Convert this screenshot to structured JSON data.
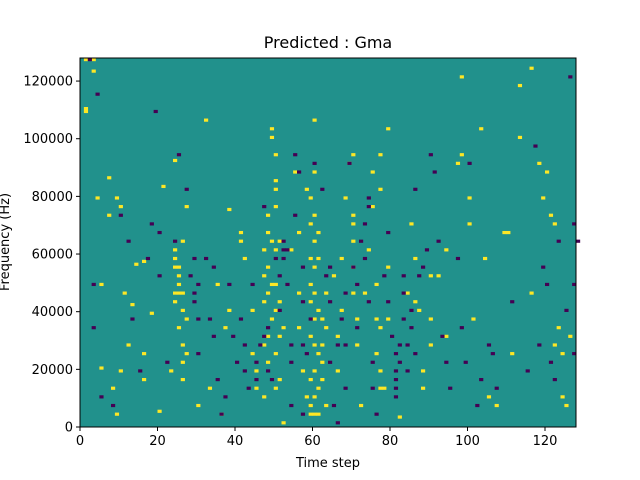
{
  "chart_data": {
    "type": "heatmap",
    "title": "Predicted : Gma",
    "xlabel": "Time step",
    "ylabel": "Frequency (Hz)",
    "xlim": [
      0,
      128
    ],
    "ylim": [
      0,
      128000
    ],
    "x_ticks": [
      0,
      20,
      40,
      60,
      80,
      100,
      120
    ],
    "y_ticks": [
      0,
      20000,
      40000,
      60000,
      80000,
      100000,
      120000
    ],
    "grid": false,
    "colors": {
      "background": "#21918c",
      "high": "#fde725",
      "low": "#440154"
    },
    "value_levels": {
      "background": 0,
      "high": 1,
      "low": -1
    },
    "n_time_steps": 128,
    "n_frequency_bins": 128,
    "cells_note_high": "high-valued cells [time_step, frequency_bin]",
    "high_cells": [
      [
        1,
        127
      ],
      [
        3,
        127
      ],
      [
        3,
        123
      ],
      [
        1,
        110
      ],
      [
        1,
        109
      ],
      [
        7,
        86
      ],
      [
        4,
        79
      ],
      [
        9,
        79
      ],
      [
        7,
        73
      ],
      [
        10,
        76
      ],
      [
        9,
        4
      ],
      [
        8,
        13
      ],
      [
        10,
        19
      ],
      [
        5,
        49
      ],
      [
        11,
        46
      ],
      [
        14,
        56
      ],
      [
        13,
        42
      ],
      [
        5,
        20
      ],
      [
        12,
        28
      ],
      [
        16,
        57
      ],
      [
        18,
        39
      ],
      [
        16,
        25
      ],
      [
        16,
        16
      ],
      [
        20,
        5
      ],
      [
        21,
        83
      ],
      [
        24,
        92
      ],
      [
        24,
        61
      ],
      [
        24,
        58
      ],
      [
        24,
        55
      ],
      [
        25,
        55
      ],
      [
        25,
        52
      ],
      [
        25,
        49
      ],
      [
        24,
        46
      ],
      [
        25,
        46
      ],
      [
        26,
        46
      ],
      [
        24,
        43
      ],
      [
        26,
        40
      ],
      [
        25,
        34
      ],
      [
        26,
        28
      ],
      [
        26,
        22
      ],
      [
        26,
        16
      ],
      [
        27,
        76
      ],
      [
        26,
        64
      ],
      [
        27,
        25
      ],
      [
        27,
        37
      ],
      [
        23,
        19
      ],
      [
        32,
        106
      ],
      [
        30,
        7
      ],
      [
        33,
        13
      ],
      [
        35,
        49
      ],
      [
        36,
        4
      ],
      [
        37,
        34
      ],
      [
        38,
        40
      ],
      [
        38,
        75
      ],
      [
        41,
        67
      ],
      [
        41,
        64
      ],
      [
        42,
        58
      ],
      [
        44,
        40
      ],
      [
        44,
        25
      ],
      [
        45,
        19
      ],
      [
        45,
        13
      ],
      [
        47,
        61
      ],
      [
        47,
        52
      ],
      [
        47,
        43
      ],
      [
        47,
        28
      ],
      [
        47,
        10
      ],
      [
        48,
        73
      ],
      [
        48,
        67
      ],
      [
        48,
        55
      ],
      [
        48,
        46
      ],
      [
        48,
        31
      ],
      [
        48,
        22
      ],
      [
        49,
        100
      ],
      [
        49,
        103
      ],
      [
        49,
        64
      ],
      [
        49,
        49
      ],
      [
        49,
        37
      ],
      [
        50,
        94
      ],
      [
        50,
        85
      ],
      [
        50,
        82
      ],
      [
        50,
        76
      ],
      [
        50,
        61
      ],
      [
        50,
        49
      ],
      [
        50,
        40
      ],
      [
        50,
        25
      ],
      [
        50,
        13
      ],
      [
        51,
        64
      ],
      [
        51,
        43
      ],
      [
        51,
        31
      ],
      [
        51,
        16
      ],
      [
        52,
        1
      ],
      [
        52,
        34
      ],
      [
        54,
        61
      ],
      [
        55,
        88
      ],
      [
        56,
        67
      ],
      [
        56,
        46
      ],
      [
        56,
        34
      ],
      [
        57,
        19
      ],
      [
        58,
        10
      ],
      [
        59,
        49
      ],
      [
        59,
        70
      ],
      [
        59,
        58
      ],
      [
        59,
        43
      ],
      [
        59,
        31
      ],
      [
        59,
        16
      ],
      [
        59,
        7
      ],
      [
        59,
        4
      ],
      [
        60,
        73
      ],
      [
        60,
        64
      ],
      [
        60,
        55
      ],
      [
        60,
        46
      ],
      [
        60,
        37
      ],
      [
        60,
        28
      ],
      [
        60,
        19
      ],
      [
        60,
        10
      ],
      [
        60,
        4
      ],
      [
        61,
        67
      ],
      [
        61,
        58
      ],
      [
        61,
        40
      ],
      [
        61,
        25
      ],
      [
        61,
        13
      ],
      [
        61,
        4
      ],
      [
        62,
        37
      ],
      [
        62,
        28
      ],
      [
        62,
        22
      ],
      [
        62,
        16
      ],
      [
        63,
        46
      ],
      [
        63,
        34
      ],
      [
        63,
        7
      ],
      [
        60,
        106
      ],
      [
        60,
        88
      ],
      [
        58,
        82
      ],
      [
        59,
        79
      ],
      [
        65,
        52
      ],
      [
        66,
        31
      ],
      [
        66,
        19
      ],
      [
        67,
        58
      ],
      [
        67,
        40
      ],
      [
        68,
        79
      ],
      [
        69,
        91
      ],
      [
        70,
        94
      ],
      [
        70,
        73
      ],
      [
        70,
        70
      ],
      [
        70,
        64
      ],
      [
        70,
        55
      ],
      [
        70,
        46
      ],
      [
        71,
        37
      ],
      [
        71,
        28
      ],
      [
        72,
        7
      ],
      [
        73,
        46
      ],
      [
        74,
        61
      ],
      [
        75,
        88
      ],
      [
        75,
        76
      ],
      [
        76,
        49
      ],
      [
        76,
        37
      ],
      [
        77,
        34
      ],
      [
        76,
        25
      ],
      [
        77,
        19
      ],
      [
        77,
        13
      ],
      [
        77,
        94
      ],
      [
        77,
        82
      ],
      [
        78,
        13
      ],
      [
        79,
        37
      ],
      [
        79,
        55
      ],
      [
        79,
        103
      ],
      [
        82,
        3
      ],
      [
        84,
        46
      ],
      [
        85,
        70
      ],
      [
        86,
        58
      ],
      [
        86,
        43
      ],
      [
        87,
        40
      ],
      [
        88,
        19
      ],
      [
        88,
        13
      ],
      [
        90,
        52
      ],
      [
        90,
        37
      ],
      [
        90,
        28
      ],
      [
        92,
        52
      ],
      [
        94,
        61
      ],
      [
        94,
        31
      ],
      [
        97,
        91
      ],
      [
        98,
        121
      ],
      [
        98,
        94
      ],
      [
        100,
        79
      ],
      [
        100,
        70
      ],
      [
        101,
        37
      ],
      [
        103,
        103
      ],
      [
        104,
        58
      ],
      [
        105,
        10
      ],
      [
        107,
        7
      ],
      [
        109,
        67
      ],
      [
        110,
        67
      ],
      [
        111,
        25
      ],
      [
        113,
        100
      ],
      [
        113,
        118
      ],
      [
        116,
        46
      ],
      [
        116,
        124
      ],
      [
        118,
        91
      ],
      [
        119,
        79
      ],
      [
        120,
        88
      ],
      [
        121,
        73
      ],
      [
        122,
        70
      ],
      [
        122,
        28
      ],
      [
        123,
        34
      ],
      [
        124,
        25
      ],
      [
        126,
        31
      ],
      [
        124,
        10
      ],
      [
        125,
        7
      ]
    ],
    "cells_note_low": "low-valued cells [time_step, frequency_bin]",
    "low_cells": [
      [
        2,
        127
      ],
      [
        4,
        115
      ],
      [
        3,
        49
      ],
      [
        3,
        34
      ],
      [
        5,
        10
      ],
      [
        8,
        7
      ],
      [
        10,
        73
      ],
      [
        12,
        64
      ],
      [
        13,
        37
      ],
      [
        15,
        19
      ],
      [
        17,
        58
      ],
      [
        18,
        70
      ],
      [
        19,
        109
      ],
      [
        20,
        67
      ],
      [
        20,
        52
      ],
      [
        22,
        22
      ],
      [
        24,
        64
      ],
      [
        25,
        94
      ],
      [
        27,
        82
      ],
      [
        28,
        52
      ],
      [
        29,
        58
      ],
      [
        29,
        43
      ],
      [
        29,
        46
      ],
      [
        30,
        49
      ],
      [
        30,
        37
      ],
      [
        30,
        25
      ],
      [
        32,
        58
      ],
      [
        33,
        37
      ],
      [
        34,
        55
      ],
      [
        34,
        31
      ],
      [
        35,
        16
      ],
      [
        36,
        4
      ],
      [
        37,
        10
      ],
      [
        38,
        49
      ],
      [
        39,
        31
      ],
      [
        40,
        22
      ],
      [
        41,
        37
      ],
      [
        42,
        28
      ],
      [
        42,
        19
      ],
      [
        43,
        13
      ],
      [
        44,
        49
      ],
      [
        45,
        22
      ],
      [
        45,
        16
      ],
      [
        46,
        28
      ],
      [
        47,
        76
      ],
      [
        47,
        31
      ],
      [
        48,
        19
      ],
      [
        48,
        34
      ],
      [
        49,
        16
      ],
      [
        50,
        58
      ],
      [
        51,
        52
      ],
      [
        51,
        40
      ],
      [
        52,
        64
      ],
      [
        52,
        61
      ],
      [
        52,
        58
      ],
      [
        53,
        61
      ],
      [
        53,
        49
      ],
      [
        54,
        28
      ],
      [
        54,
        22
      ],
      [
        54,
        7
      ],
      [
        55,
        94
      ],
      [
        55,
        73
      ],
      [
        56,
        88
      ],
      [
        57,
        55
      ],
      [
        57,
        43
      ],
      [
        57,
        28
      ],
      [
        57,
        4
      ],
      [
        58,
        25
      ],
      [
        59,
        37
      ],
      [
        60,
        91
      ],
      [
        62,
        82
      ],
      [
        63,
        52
      ],
      [
        64,
        55
      ],
      [
        64,
        43
      ],
      [
        64,
        22
      ],
      [
        65,
        7
      ],
      [
        66,
        1
      ],
      [
        66,
        28
      ],
      [
        67,
        37
      ],
      [
        68,
        46
      ],
      [
        68,
        28
      ],
      [
        68,
        13
      ],
      [
        69,
        91
      ],
      [
        70,
        55
      ],
      [
        71,
        49
      ],
      [
        71,
        34
      ],
      [
        72,
        64
      ],
      [
        73,
        70
      ],
      [
        73,
        58
      ],
      [
        74,
        76
      ],
      [
        74,
        79
      ],
      [
        74,
        43
      ],
      [
        75,
        22
      ],
      [
        75,
        13
      ],
      [
        76,
        4
      ],
      [
        78,
        52
      ],
      [
        79,
        67
      ],
      [
        79,
        43
      ],
      [
        80,
        31
      ],
      [
        81,
        25
      ],
      [
        81,
        19
      ],
      [
        81,
        16
      ],
      [
        81,
        13
      ],
      [
        81,
        10
      ],
      [
        82,
        22
      ],
      [
        82,
        28
      ],
      [
        83,
        37
      ],
      [
        83,
        46
      ],
      [
        83,
        52
      ],
      [
        84,
        28
      ],
      [
        84,
        19
      ],
      [
        85,
        40
      ],
      [
        85,
        34
      ],
      [
        86,
        25
      ],
      [
        86,
        82
      ],
      [
        87,
        52
      ],
      [
        88,
        55
      ],
      [
        89,
        61
      ],
      [
        90,
        94
      ],
      [
        91,
        88
      ],
      [
        92,
        64
      ],
      [
        93,
        31
      ],
      [
        94,
        22
      ],
      [
        95,
        13
      ],
      [
        97,
        58
      ],
      [
        98,
        34
      ],
      [
        99,
        22
      ],
      [
        100,
        91
      ],
      [
        102,
        7
      ],
      [
        103,
        16
      ],
      [
        105,
        28
      ],
      [
        106,
        25
      ],
      [
        107,
        13
      ],
      [
        111,
        43
      ],
      [
        115,
        19
      ],
      [
        117,
        97
      ],
      [
        118,
        28
      ],
      [
        119,
        55
      ],
      [
        120,
        49
      ],
      [
        121,
        22
      ],
      [
        122,
        16
      ],
      [
        123,
        64
      ],
      [
        125,
        40
      ],
      [
        126,
        121
      ],
      [
        127,
        70
      ],
      [
        128,
        64
      ],
      [
        127,
        49
      ],
      [
        127,
        25
      ]
    ]
  }
}
